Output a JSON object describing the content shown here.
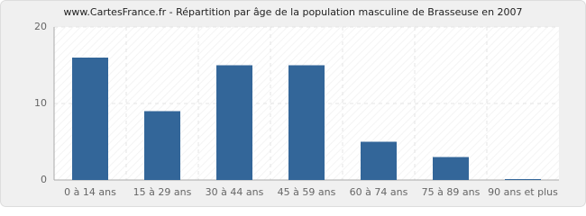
{
  "chart_data": {
    "type": "bar",
    "title": "www.CartesFrance.fr - Répartition par âge de la population masculine de Brasseuse en 2007",
    "categories": [
      "0 à 14 ans",
      "15 à 29 ans",
      "30 à 44 ans",
      "45 à 59 ans",
      "60 à 74 ans",
      "75 à 89 ans",
      "90 ans et plus"
    ],
    "values": [
      16,
      9,
      15,
      15,
      5,
      3,
      0
    ],
    "color": "#336699",
    "ylim": [
      0,
      20
    ],
    "yticks": [
      0,
      10,
      20
    ],
    "grid": true
  }
}
